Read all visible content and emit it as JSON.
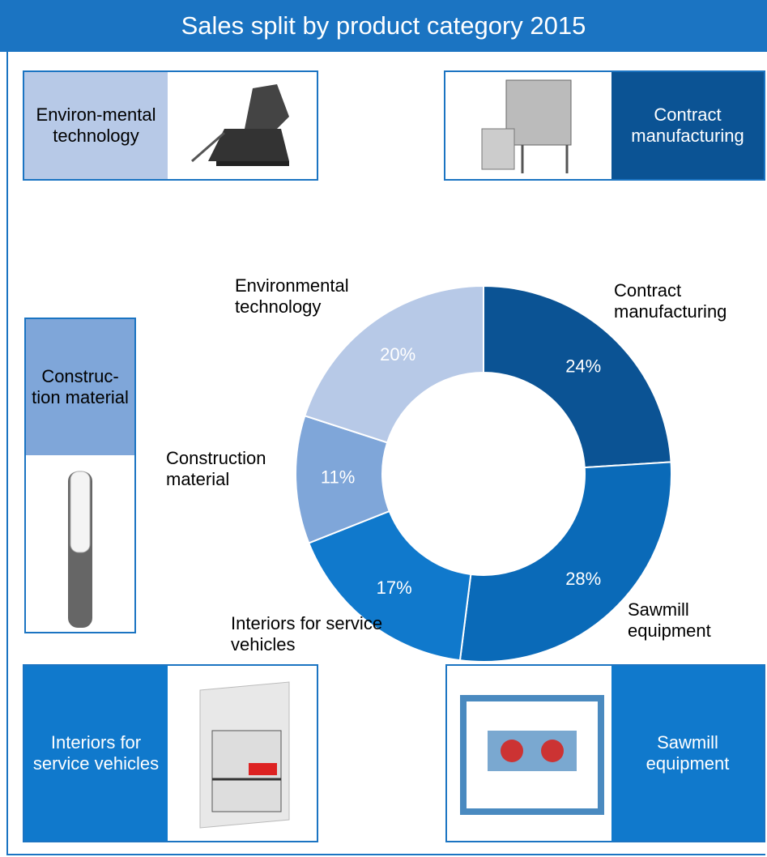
{
  "chart_data": {
    "type": "donut",
    "title": "Sales split by product category 2015",
    "categories": [
      "Contract manufacturing",
      "Sawmill equipment",
      "Interiors for service vehicles",
      "Construction material",
      "Environmental technology"
    ],
    "values": [
      24,
      28,
      17,
      11,
      20
    ],
    "value_labels": [
      "24%",
      "28%",
      "17%",
      "11%",
      "20%"
    ],
    "colors": [
      "#0b5394",
      "#0a6ab8",
      "#1079cc",
      "#7fa6d9",
      "#b7c9e7"
    ]
  },
  "panels": [
    {
      "label": "Environ-mental technology"
    },
    {
      "label": "Contract manufacturing"
    },
    {
      "label": "Construc-tion material"
    },
    {
      "label": "Interiors for service vehicles"
    },
    {
      "label": "Sawmill equipment"
    }
  ]
}
